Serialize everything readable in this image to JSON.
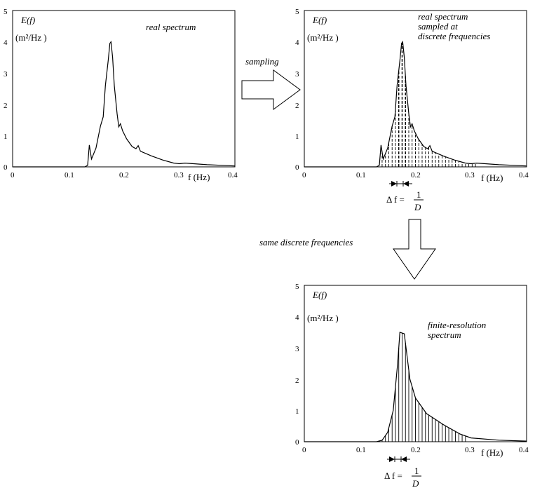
{
  "panels": {
    "real": {
      "y_axis_label": "E(f)",
      "y_units": "(m²/Hz )",
      "x_axis_label": "f (Hz)",
      "title": "real spectrum",
      "y_ticks": [
        "0",
        "1",
        "2",
        "3",
        "4",
        "5"
      ],
      "x_ticks": [
        "0",
        "0.1",
        "0.2",
        "0.3",
        "0.4"
      ]
    },
    "sampled": {
      "y_axis_label": "E(f)",
      "y_units": "(m²/Hz )",
      "x_axis_label": "f (Hz)",
      "title_lines": [
        "real spectrum",
        "sampled at",
        "discrete frequencies"
      ],
      "y_ticks": [
        "0",
        "1",
        "2",
        "3",
        "4",
        "5"
      ],
      "x_ticks": [
        "0",
        "0.1",
        "0.2",
        "0.3",
        "0.4"
      ],
      "delta_label": {
        "lhs": "Δ f =",
        "num": "1",
        "den": "D"
      }
    },
    "finite": {
      "y_axis_label": "E(f)",
      "y_units": "(m²/Hz )",
      "x_axis_label": "f (Hz)",
      "title_lines": [
        "finite-resolution",
        "spectrum"
      ],
      "y_ticks": [
        "0",
        "1",
        "2",
        "3",
        "4",
        "5"
      ],
      "x_ticks": [
        "0",
        "0.1",
        "0.2",
        "0.3",
        "0.4"
      ],
      "delta_label": {
        "lhs": "Δ f =",
        "num": "1",
        "den": "D"
      }
    }
  },
  "arrows": {
    "sampling_label": "sampling",
    "same_label": "same discrete frequencies"
  },
  "spectra": {
    "real_curve": [
      [
        0,
        0
      ],
      [
        0.13,
        0
      ],
      [
        0.135,
        0.05
      ],
      [
        0.138,
        0.7
      ],
      [
        0.142,
        0.25
      ],
      [
        0.15,
        0.6
      ],
      [
        0.158,
        1.3
      ],
      [
        0.163,
        1.6
      ],
      [
        0.167,
        2.6
      ],
      [
        0.172,
        3.4
      ],
      [
        0.175,
        3.95
      ],
      [
        0.177,
        4.0
      ],
      [
        0.18,
        3.5
      ],
      [
        0.183,
        2.6
      ],
      [
        0.188,
        1.7
      ],
      [
        0.191,
        1.28
      ],
      [
        0.194,
        1.38
      ],
      [
        0.198,
        1.15
      ],
      [
        0.205,
        0.9
      ],
      [
        0.215,
        0.65
      ],
      [
        0.222,
        0.58
      ],
      [
        0.226,
        0.68
      ],
      [
        0.23,
        0.5
      ],
      [
        0.25,
        0.35
      ],
      [
        0.27,
        0.22
      ],
      [
        0.29,
        0.12
      ],
      [
        0.3,
        0.1
      ],
      [
        0.31,
        0.12
      ],
      [
        0.35,
        0.07
      ],
      [
        0.4,
        0.03
      ]
    ],
    "finite_curve": [
      [
        0,
        0
      ],
      [
        0.13,
        0
      ],
      [
        0.14,
        0.05
      ],
      [
        0.15,
        0.3
      ],
      [
        0.16,
        1.0
      ],
      [
        0.168,
        2.5
      ],
      [
        0.172,
        3.5
      ],
      [
        0.18,
        3.45
      ],
      [
        0.19,
        2.0
      ],
      [
        0.2,
        1.4
      ],
      [
        0.22,
        0.9
      ],
      [
        0.25,
        0.55
      ],
      [
        0.28,
        0.25
      ],
      [
        0.3,
        0.12
      ],
      [
        0.35,
        0.05
      ],
      [
        0.4,
        0.02
      ]
    ],
    "sample_freqs": [
      0.14,
      0.146,
      0.152,
      0.158,
      0.164,
      0.17,
      0.176,
      0.182,
      0.188,
      0.194,
      0.2,
      0.206,
      0.212,
      0.218,
      0.224,
      0.23,
      0.236,
      0.242,
      0.248,
      0.254,
      0.26,
      0.266,
      0.272,
      0.278,
      0.284,
      0.29,
      0.296,
      0.302,
      0.308
    ],
    "finite_line_freqs": [
      0.14,
      0.146,
      0.152,
      0.158,
      0.164,
      0.17,
      0.176,
      0.182,
      0.188,
      0.194,
      0.2,
      0.206,
      0.212,
      0.218,
      0.224,
      0.23,
      0.236,
      0.242,
      0.248,
      0.254,
      0.26,
      0.266,
      0.272,
      0.278,
      0.284,
      0.29
    ],
    "y_range": [
      0,
      5
    ],
    "x_range": [
      0,
      0.4
    ]
  }
}
